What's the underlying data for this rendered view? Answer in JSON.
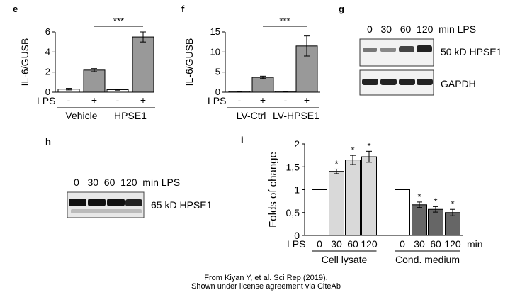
{
  "panel_labels": {
    "e": "e",
    "f": "f",
    "g": "g",
    "h": "h",
    "i": "i"
  },
  "credit": {
    "line1": "From Kiyan Y, et al. Sci Rep (2019).",
    "line2": "Shown under license agreement via CiteAb"
  },
  "colors": {
    "white_bar": "#ffffff",
    "dark_gray_bar": "#999999",
    "light_gray_bar": "#d9d9d9",
    "darker_bar": "#666666"
  },
  "chart_data": [
    {
      "panel": "e",
      "type": "bar",
      "ylabel": "IL-6/GUSB",
      "ylim": [
        0,
        6
      ],
      "yticks": [
        "0",
        "2",
        "4",
        "6"
      ],
      "row_label": "LPS",
      "lps": [
        "-",
        "+",
        "-",
        "+"
      ],
      "groups": [
        "Vehicle",
        "HPSE1"
      ],
      "values": [
        0.3,
        2.2,
        0.25,
        5.5
      ],
      "errors": [
        0.08,
        0.15,
        0.05,
        0.5
      ],
      "fills": [
        "white",
        "gray",
        "white",
        "gray"
      ],
      "significance": "***"
    },
    {
      "panel": "f",
      "type": "bar",
      "ylabel": "IL-6/GUSB",
      "ylim": [
        0,
        15
      ],
      "yticks": [
        "0",
        "5",
        "10",
        "15"
      ],
      "row_label": "LPS",
      "lps": [
        "-",
        "+",
        "-",
        "+"
      ],
      "groups": [
        "LV-Ctrl",
        "LV-HPSE1"
      ],
      "values": [
        0.2,
        3.7,
        0.2,
        11.5
      ],
      "errors": [
        0.05,
        0.3,
        0.05,
        2.5
      ],
      "fills": [
        "white",
        "gray",
        "white",
        "gray"
      ],
      "significance": "***"
    },
    {
      "panel": "i",
      "type": "bar",
      "ylabel": "Folds of change",
      "ylim": [
        0,
        2
      ],
      "yticks": [
        "0",
        "0,5",
        "1",
        "1,5",
        "2"
      ],
      "row_label": "LPS",
      "unit_label": "min",
      "x_labels": [
        "0",
        "30",
        "60",
        "120",
        "0",
        "30",
        "60",
        "120"
      ],
      "groups": [
        "Cell lysate",
        "Cond. medium"
      ],
      "values": [
        1.0,
        1.4,
        1.65,
        1.72,
        1.0,
        0.67,
        0.57,
        0.5
      ],
      "errors": [
        0,
        0.05,
        0.1,
        0.12,
        0,
        0.06,
        0.06,
        0.07
      ],
      "fills": [
        "white",
        "light",
        "light",
        "light",
        "white",
        "dark",
        "dark",
        "dark"
      ],
      "stars": [
        "",
        "*",
        "*",
        "*",
        "",
        "*",
        "*",
        "*"
      ]
    }
  ],
  "blots": {
    "g": {
      "header": "0   30   60  120  min LPS",
      "bands": [
        "50 kD HPSE1",
        "GAPDH"
      ]
    },
    "h": {
      "header": "0   30  60  120  min LPS",
      "bands": [
        "65 kD HPSE1"
      ]
    }
  }
}
